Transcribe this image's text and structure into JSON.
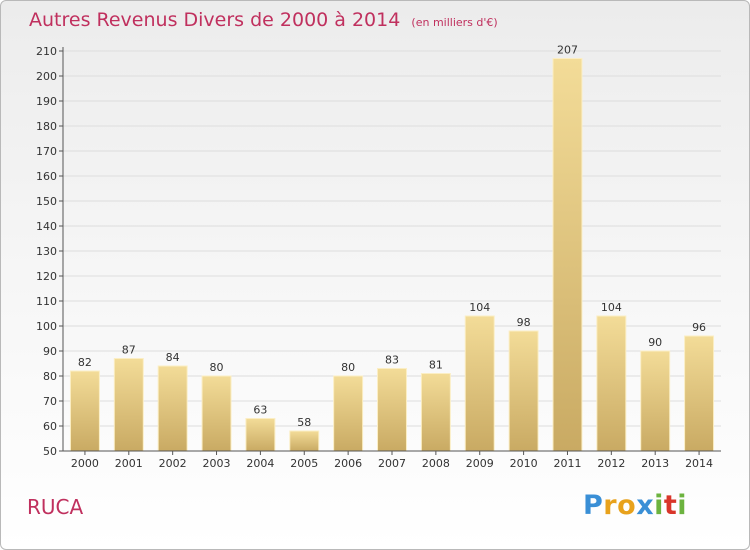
{
  "header": {
    "title": "Autres Revenus Divers de 2000 à 2014",
    "unit": "(en milliers d'€)"
  },
  "footer": {
    "place": "RUCA",
    "logo_letters": [
      "P",
      "r",
      "o",
      "x",
      "i",
      "t",
      "i"
    ],
    "logo_colors": [
      "#3a8fd6",
      "#e8a21c",
      "#e8a21c",
      "#3a8fd6",
      "#6cb33f",
      "#d9362a",
      "#6cb33f"
    ]
  },
  "chart_data": {
    "type": "bar",
    "title": "Autres Revenus Divers de 2000 à 2014",
    "xlabel": "",
    "ylabel": "",
    "categories": [
      "2000",
      "2001",
      "2002",
      "2003",
      "2004",
      "2005",
      "2006",
      "2007",
      "2008",
      "2009",
      "2010",
      "2011",
      "2012",
      "2013",
      "2014"
    ],
    "values": [
      82,
      87,
      84,
      80,
      63,
      58,
      80,
      83,
      81,
      104,
      98,
      207,
      104,
      90,
      96
    ],
    "ylim": [
      50,
      210
    ],
    "yticks": [
      50,
      60,
      70,
      80,
      90,
      100,
      110,
      120,
      130,
      140,
      150,
      160,
      170,
      180,
      190,
      200,
      210
    ],
    "grid": true,
    "colors": {
      "bar_light": "#f3dc98",
      "bar_dark": "#c9aa63",
      "bar_edge": "#fbeec4",
      "grid": "#dddddd",
      "axis": "#555555"
    }
  }
}
